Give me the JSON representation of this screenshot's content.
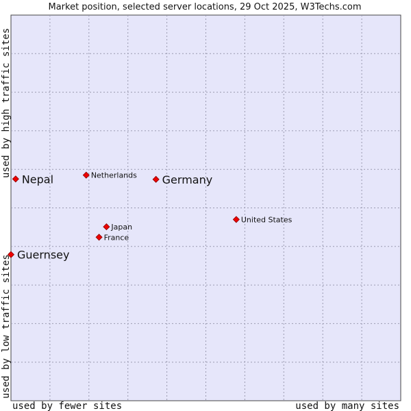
{
  "chart_data": {
    "type": "scatter",
    "title": "Market position, selected server locations, 29 Oct 2025, W3Techs.com",
    "xlabel_low": "used by fewer sites",
    "xlabel_high": "used by many sites",
    "ylabel_low": "used by low traffic sites",
    "ylabel_high": "used by high traffic sites",
    "xlim": [
      0,
      100
    ],
    "ylim": [
      0,
      100
    ],
    "grid": true,
    "background_color": "#e6e6fa",
    "point_color": "#ee0000",
    "points": [
      {
        "name": "Nepal",
        "x": 1.2,
        "y": 57.5,
        "label_size": "large"
      },
      {
        "name": "Netherlands",
        "x": 19.3,
        "y": 58.5,
        "label_size": "small"
      },
      {
        "name": "Germany",
        "x": 37.2,
        "y": 57.4,
        "label_size": "large"
      },
      {
        "name": "United States",
        "x": 57.8,
        "y": 47.0,
        "label_size": "small"
      },
      {
        "name": "Japan",
        "x": 24.5,
        "y": 45.1,
        "label_size": "small"
      },
      {
        "name": "France",
        "x": 22.6,
        "y": 42.4,
        "label_size": "small"
      },
      {
        "name": "Guernsey",
        "x": 0.0,
        "y": 37.9,
        "label_size": "large"
      }
    ]
  }
}
